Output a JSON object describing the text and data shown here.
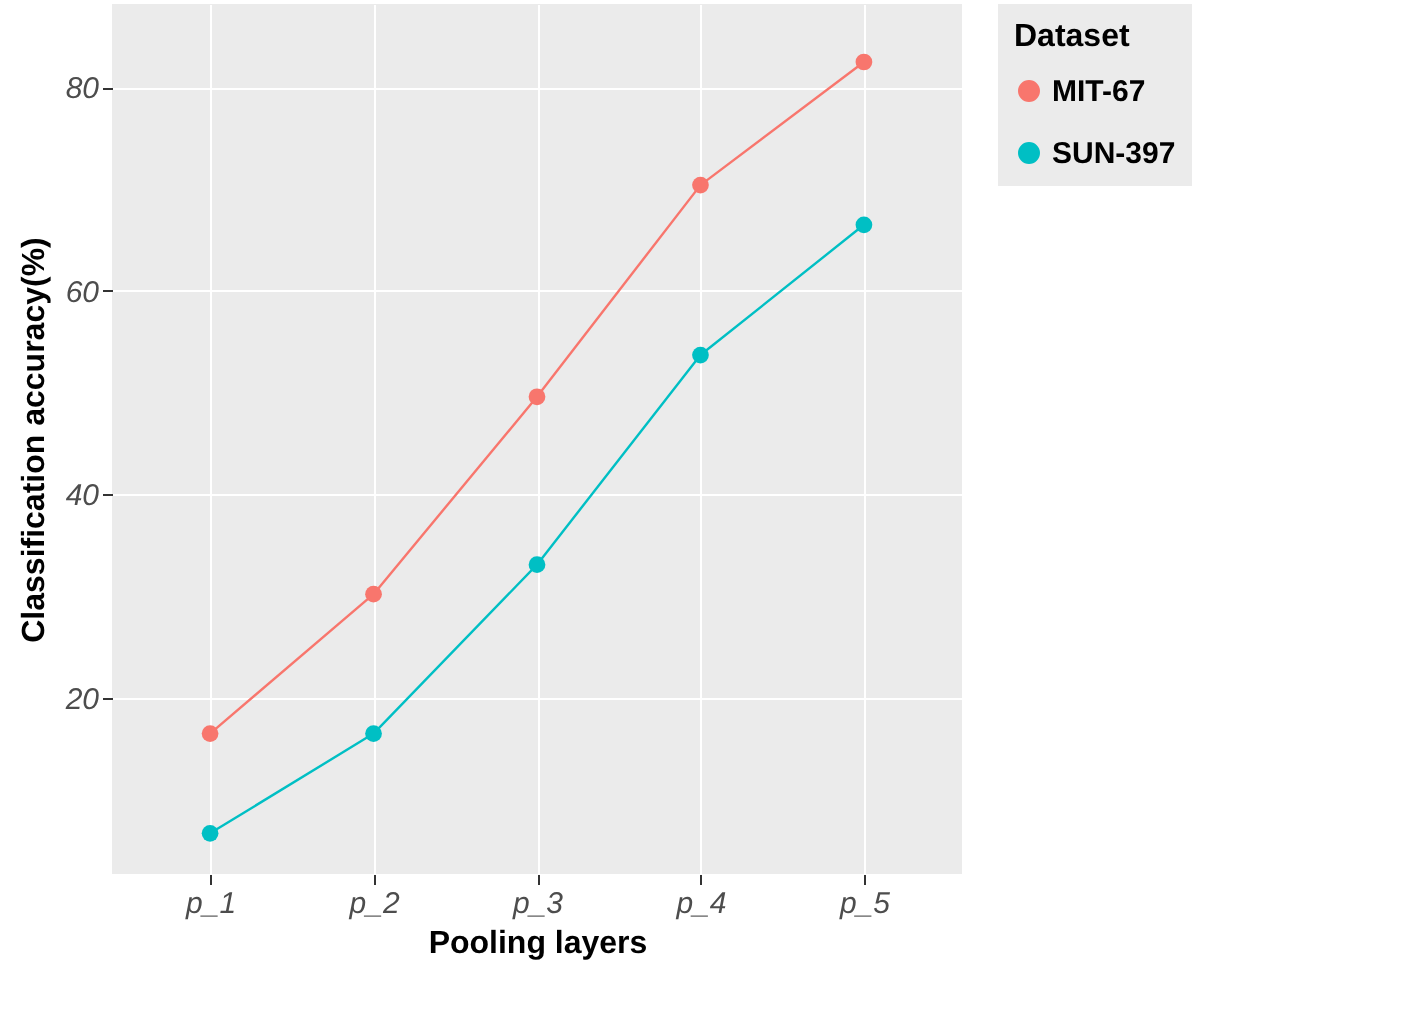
{
  "chart_data": {
    "type": "line",
    "xlabel": "Pooling layers",
    "ylabel": "Classification accuracy(%)",
    "legend_title": "Dataset",
    "categories": [
      "p_1",
      "p_2",
      "p_3",
      "p_4",
      "p_5"
    ],
    "series": [
      {
        "name": "MIT-67",
        "color": "#f8766d",
        "values": [
          16.5,
          30.2,
          49.6,
          70.4,
          82.5
        ]
      },
      {
        "name": "SUN-397",
        "color": "#00bfc4",
        "values": [
          6.7,
          16.5,
          33.1,
          53.7,
          66.5
        ]
      }
    ],
    "ylim": [
      2.7,
      88.2
    ],
    "yticks": [
      20,
      40,
      60,
      80
    ],
    "grid": true,
    "legend": "right",
    "marker": "circle",
    "line_style": "solid"
  }
}
